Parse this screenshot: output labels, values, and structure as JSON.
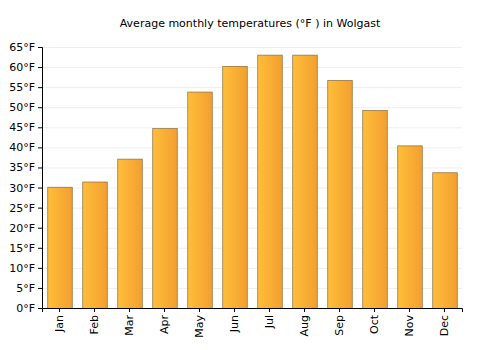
{
  "chart_data": {
    "type": "bar",
    "title": "Average monthly temperatures (°F ) in Wolgast",
    "categories": [
      "Jan",
      "Feb",
      "Mar",
      "Apr",
      "May",
      "Jun",
      "Jul",
      "Aug",
      "Sep",
      "Oct",
      "Nov",
      "Dec"
    ],
    "values": [
      30.2,
      31.5,
      37.2,
      44.8,
      53.9,
      60.3,
      63.1,
      63.1,
      56.8,
      49.3,
      40.5,
      33.8
    ],
    "color": "#ffa833",
    "ylim": [
      0,
      65
    ],
    "yticks": [
      {
        "value": 0,
        "label": "0°F"
      },
      {
        "value": 5,
        "label": "5°F"
      },
      {
        "value": 10,
        "label": "10°F"
      },
      {
        "value": 15,
        "label": "15°F"
      },
      {
        "value": 20,
        "label": "20°F"
      },
      {
        "value": 25,
        "label": "25°F"
      },
      {
        "value": 30,
        "label": "30°F"
      },
      {
        "value": 35,
        "label": "35°F"
      },
      {
        "value": 40,
        "label": "40°F"
      },
      {
        "value": 45,
        "label": "45°F"
      },
      {
        "value": 50,
        "label": "50°F"
      },
      {
        "value": 55,
        "label": "55°F"
      },
      {
        "value": 60,
        "label": "60°F"
      },
      {
        "value": 65,
        "label": "65°F"
      }
    ],
    "grid": true
  }
}
